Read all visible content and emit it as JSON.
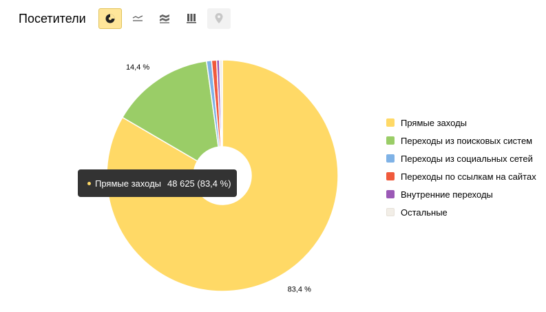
{
  "header": {
    "title": "Посетители",
    "view_buttons": [
      {
        "icon": "pie-chart-icon",
        "active": true
      },
      {
        "icon": "line-chart-icon",
        "active": false
      },
      {
        "icon": "area-chart-icon",
        "active": false
      },
      {
        "icon": "bar-chart-icon",
        "active": false
      },
      {
        "icon": "map-pin-icon",
        "active": false,
        "disabled": true
      }
    ]
  },
  "tooltip": {
    "series": "Прямые заходы",
    "value": "48 625 (83,4 %)",
    "color": "#ffd966"
  },
  "chart_data": {
    "type": "pie",
    "style": "donut",
    "series": [
      {
        "name": "Прямые заходы",
        "value": 83.4,
        "color": "#ffd966",
        "label": "83,4 %"
      },
      {
        "name": "Переходы из поисковых систем",
        "value": 14.4,
        "color": "#9acd67",
        "label": "14,4 %"
      },
      {
        "name": "Переходы из социальных сетей",
        "value": 0.7,
        "color": "#7fb2e6",
        "label": ""
      },
      {
        "name": "Переходы по ссылкам на сайтах",
        "value": 0.7,
        "color": "#f05a3c",
        "label": ""
      },
      {
        "name": "Внутренние переходы",
        "value": 0.4,
        "color": "#9b59b6",
        "label": ""
      },
      {
        "name": "Остальные",
        "value": 0.4,
        "color": "#f2eee7",
        "label": ""
      }
    ],
    "legend_position": "right"
  }
}
